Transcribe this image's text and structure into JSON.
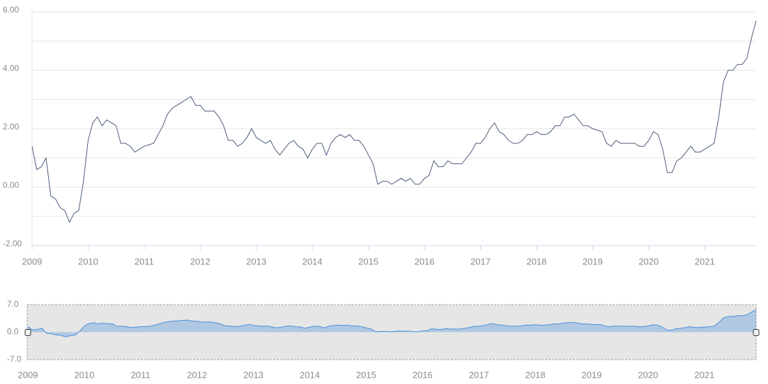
{
  "chart_data": {
    "type": "line",
    "x": [
      2009,
      2009.083,
      2009.167,
      2009.25,
      2009.333,
      2009.417,
      2009.5,
      2009.583,
      2009.667,
      2009.75,
      2009.833,
      2009.917,
      2010,
      2010.083,
      2010.167,
      2010.25,
      2010.333,
      2010.417,
      2010.5,
      2010.583,
      2010.667,
      2010.75,
      2010.833,
      2010.917,
      2011,
      2011.083,
      2011.167,
      2011.25,
      2011.333,
      2011.417,
      2011.5,
      2011.583,
      2011.667,
      2011.75,
      2011.833,
      2011.917,
      2012,
      2012.083,
      2012.167,
      2012.25,
      2012.333,
      2012.417,
      2012.5,
      2012.583,
      2012.667,
      2012.75,
      2012.833,
      2012.917,
      2013,
      2013.083,
      2013.167,
      2013.25,
      2013.333,
      2013.417,
      2013.5,
      2013.583,
      2013.667,
      2013.75,
      2013.833,
      2013.917,
      2014,
      2014.083,
      2014.167,
      2014.25,
      2014.333,
      2014.417,
      2014.5,
      2014.583,
      2014.667,
      2014.75,
      2014.833,
      2014.917,
      2015,
      2015.083,
      2015.167,
      2015.25,
      2015.333,
      2015.417,
      2015.5,
      2015.583,
      2015.667,
      2015.75,
      2015.833,
      2015.917,
      2016,
      2016.083,
      2016.167,
      2016.25,
      2016.333,
      2016.417,
      2016.5,
      2016.583,
      2016.667,
      2016.75,
      2016.833,
      2016.917,
      2017,
      2017.083,
      2017.167,
      2017.25,
      2017.333,
      2017.417,
      2017.5,
      2017.583,
      2017.667,
      2017.75,
      2017.833,
      2017.917,
      2018,
      2018.083,
      2018.167,
      2018.25,
      2018.333,
      2018.417,
      2018.5,
      2018.583,
      2018.667,
      2018.75,
      2018.833,
      2018.917,
      2019,
      2019.083,
      2019.167,
      2019.25,
      2019.333,
      2019.417,
      2019.5,
      2019.583,
      2019.667,
      2019.75,
      2019.833,
      2019.917,
      2020,
      2020.083,
      2020.167,
      2020.25,
      2020.333,
      2020.417,
      2020.5,
      2020.583,
      2020.667,
      2020.75,
      2020.833,
      2020.917,
      2021,
      2021.083,
      2021.167,
      2021.25,
      2021.333,
      2021.417,
      2021.5,
      2021.583,
      2021.667,
      2021.75,
      2021.833,
      2021.917
    ],
    "values": [
      1.4,
      0.6,
      0.7,
      1.0,
      -0.3,
      -0.4,
      -0.7,
      -0.8,
      -1.2,
      -0.9,
      -0.8,
      0.2,
      1.6,
      2.2,
      2.4,
      2.1,
      2.3,
      2.2,
      2.1,
      1.5,
      1.5,
      1.4,
      1.2,
      1.3,
      1.4,
      1.45,
      1.5,
      1.8,
      2.1,
      2.5,
      2.7,
      2.8,
      2.9,
      3.0,
      3.1,
      2.8,
      2.8,
      2.6,
      2.6,
      2.6,
      2.4,
      2.1,
      1.6,
      1.6,
      1.4,
      1.5,
      1.7,
      2.0,
      1.7,
      1.6,
      1.5,
      1.6,
      1.3,
      1.1,
      1.3,
      1.5,
      1.6,
      1.4,
      1.3,
      1.0,
      1.3,
      1.5,
      1.5,
      1.1,
      1.5,
      1.7,
      1.8,
      1.7,
      1.8,
      1.6,
      1.6,
      1.4,
      1.1,
      0.8,
      0.1,
      0.2,
      0.2,
      0.1,
      0.2,
      0.3,
      0.2,
      0.3,
      0.1,
      0.1,
      0.3,
      0.4,
      0.9,
      0.7,
      0.7,
      0.9,
      0.8,
      0.8,
      0.8,
      1.0,
      1.2,
      1.5,
      1.5,
      1.7,
      2.0,
      2.2,
      1.9,
      1.8,
      1.6,
      1.5,
      1.5,
      1.6,
      1.8,
      1.8,
      1.9,
      1.8,
      1.8,
      1.9,
      2.1,
      2.1,
      2.4,
      2.4,
      2.5,
      2.3,
      2.1,
      2.1,
      2.0,
      1.95,
      1.9,
      1.5,
      1.4,
      1.6,
      1.5,
      1.5,
      1.5,
      1.5,
      1.4,
      1.4,
      1.6,
      1.9,
      1.8,
      1.3,
      0.5,
      0.5,
      0.9,
      1.0,
      1.2,
      1.4,
      1.2,
      1.2,
      1.3,
      1.4,
      1.5,
      2.4,
      3.6,
      4.0,
      4.0,
      4.2,
      4.2,
      4.4,
      5.1,
      5.7
    ],
    "color": "#4b5b7a",
    "xlim": [
      2009,
      2021.917
    ],
    "xticks": [
      2009,
      2010,
      2011,
      2012,
      2013,
      2014,
      2015,
      2016,
      2017,
      2018,
      2019,
      2020,
      2021
    ],
    "ylim": [
      -2,
      6
    ],
    "yticks": [
      {
        "value": -2,
        "label": "-2.00"
      },
      {
        "value": 0,
        "label": "0.00"
      },
      {
        "value": 2,
        "label": "2.00"
      },
      {
        "value": 4,
        "label": "4.00"
      },
      {
        "value": 6,
        "label": "6.00"
      }
    ],
    "y_minor_ticks": [
      -1,
      1,
      3,
      5
    ],
    "grid": true,
    "navigator": {
      "ylim": [
        -7,
        7
      ],
      "color": "#4a90d9",
      "yticks": [
        {
          "value": -7,
          "label": "-7.0"
        },
        {
          "value": 0,
          "label": "0.0"
        },
        {
          "value": 7,
          "label": "7.0"
        }
      ]
    }
  }
}
